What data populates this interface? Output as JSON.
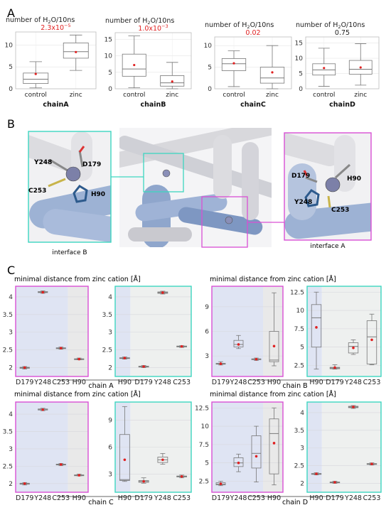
{
  "panels": {
    "A": "A",
    "B": "B",
    "C": "C"
  },
  "section_a": {
    "ylabel_prefix": "number of H",
    "ylabel_sub": "2",
    "ylabel_suffix": "O/10ns",
    "categories": [
      "control",
      "zinc"
    ]
  },
  "section_b": {
    "interface_b": "interface B",
    "interface_a": "interface A",
    "labels_left": [
      "Y248",
      "D179",
      "C253",
      "H90"
    ],
    "labels_right": [
      "D179",
      "H90",
      "Y248",
      "C253"
    ]
  },
  "section_c": {
    "ylabel": "minimal distance from zinc cation [Å]",
    "chain_labels": [
      "chain A",
      "chain B",
      "chain C",
      "chain D"
    ]
  },
  "colors": {
    "magenta": "#d94fd4",
    "teal": "#3dd6c0",
    "red": "#e02020",
    "median": "#7a7a7a",
    "blue_shade": "#dfe4f3",
    "grey_shade": "#e9e9e9"
  },
  "chart_data": [
    {
      "type": "box",
      "id": "A1",
      "xlabel": "chainA",
      "pvalue": "2.3x10",
      "pvalue_exp": "−5",
      "categories": [
        "control",
        "zinc"
      ],
      "ylim": [
        0,
        13
      ],
      "yticks": [
        0,
        5,
        10
      ],
      "boxes": [
        {
          "whislo": 0.2,
          "q1": 1.2,
          "med": 2.2,
          "q3": 3.6,
          "whishi": 6.2,
          "mean": 3.4
        },
        {
          "whislo": 4.2,
          "q1": 7.0,
          "med": 8.5,
          "q3": 10.5,
          "whishi": 12.3,
          "mean": 8.4
        }
      ]
    },
    {
      "type": "box",
      "id": "A2",
      "xlabel": "chainB",
      "pvalue": "1.0x10",
      "pvalue_exp": "−3",
      "categories": [
        "control",
        "zinc"
      ],
      "ylim": [
        0,
        17
      ],
      "yticks": [
        0,
        5,
        10,
        15
      ],
      "boxes": [
        {
          "whislo": 0.3,
          "q1": 3.8,
          "med": 6.0,
          "q3": 10.5,
          "whishi": 16.0,
          "mean": 7.2
        },
        {
          "whislo": 0.0,
          "q1": 0.8,
          "med": 1.8,
          "q3": 4.0,
          "whishi": 8.0,
          "mean": 2.2
        }
      ]
    },
    {
      "type": "box",
      "id": "A3",
      "xlabel": "chainC",
      "pvalue": "0.02",
      "pvalue_exp": "",
      "categories": [
        "control",
        "zinc"
      ],
      "ylim": [
        0,
        12
      ],
      "yticks": [
        0,
        5,
        10
      ],
      "boxes": [
        {
          "whislo": 0.5,
          "q1": 4.2,
          "med": 5.8,
          "q3": 7.0,
          "whishi": 8.8,
          "mean": 5.9
        },
        {
          "whislo": 0.0,
          "q1": 1.3,
          "med": 2.5,
          "q3": 5.0,
          "whishi": 10.0,
          "mean": 3.8
        }
      ]
    },
    {
      "type": "box",
      "id": "A4",
      "xlabel": "chainD",
      "pvalue": "0.75",
      "pvalue_exp": "",
      "categories": [
        "control",
        "zinc"
      ],
      "ylim": [
        0,
        17
      ],
      "yticks": [
        0,
        5,
        10,
        15
      ],
      "boxes": [
        {
          "whislo": 0.8,
          "q1": 4.5,
          "med": 6.2,
          "q3": 8.2,
          "whishi": 13.3,
          "mean": 6.8
        },
        {
          "whislo": 1.2,
          "q1": 4.8,
          "med": 6.4,
          "q3": 9.3,
          "whishi": 14.8,
          "mean": 7.0
        }
      ]
    },
    {
      "type": "box",
      "id": "CA_m",
      "frame": "magenta",
      "categories": [
        "D179",
        "Y248",
        "C253",
        "H90"
      ],
      "ylim": [
        1.75,
        4.3
      ],
      "yticks": [
        2,
        2.5,
        3,
        3.5,
        4
      ],
      "boxes": [
        {
          "whislo": 1.96,
          "q1": 1.98,
          "med": 2.0,
          "q3": 2.01,
          "whishi": 2.03,
          "mean": 2.0
        },
        {
          "whislo": 4.1,
          "q1": 4.12,
          "med": 4.13,
          "q3": 4.15,
          "whishi": 4.17,
          "mean": 4.13
        },
        {
          "whislo": 2.52,
          "q1": 2.54,
          "med": 2.55,
          "q3": 2.56,
          "whishi": 2.58,
          "mean": 2.55
        },
        {
          "whislo": 2.22,
          "q1": 2.23,
          "med": 2.24,
          "q3": 2.25,
          "whishi": 2.27,
          "mean": 2.24
        }
      ]
    },
    {
      "type": "box",
      "id": "CA_t",
      "frame": "teal",
      "categories": [
        "H90",
        "D179",
        "Y248",
        "C253"
      ],
      "ylim": [
        1.75,
        4.3
      ],
      "yticks": [
        2,
        2.5,
        3,
        3.5,
        4
      ],
      "boxes": [
        {
          "whislo": 2.24,
          "q1": 2.26,
          "med": 2.27,
          "q3": 2.28,
          "whishi": 2.3,
          "mean": 2.27
        },
        {
          "whislo": 2.0,
          "q1": 2.02,
          "med": 2.03,
          "q3": 2.04,
          "whishi": 2.06,
          "mean": 2.03
        },
        {
          "whislo": 4.08,
          "q1": 4.1,
          "med": 4.12,
          "q3": 4.14,
          "whishi": 4.16,
          "mean": 4.12
        },
        {
          "whislo": 2.57,
          "q1": 2.59,
          "med": 2.6,
          "q3": 2.61,
          "whishi": 2.62,
          "mean": 2.6
        }
      ]
    },
    {
      "type": "box",
      "id": "CB_m",
      "frame": "magenta",
      "categories": [
        "D179",
        "Y248",
        "C253",
        "H90"
      ],
      "ylim": [
        0.5,
        11.5
      ],
      "yticks": [
        3,
        6,
        9
      ],
      "boxes": [
        {
          "whislo": 1.9,
          "q1": 2.0,
          "med": 2.05,
          "q3": 2.1,
          "whishi": 2.3,
          "mean": 2.05
        },
        {
          "whislo": 3.9,
          "q1": 4.1,
          "med": 4.4,
          "q3": 4.9,
          "whishi": 5.5,
          "mean": 4.4
        },
        {
          "whislo": 2.45,
          "q1": 2.55,
          "med": 2.6,
          "q3": 2.65,
          "whishi": 2.75,
          "mean": 2.6
        },
        {
          "whislo": 1.8,
          "q1": 2.3,
          "med": 2.5,
          "q3": 6.0,
          "whishi": 10.7,
          "mean": 4.2
        }
      ]
    },
    {
      "type": "box",
      "id": "CB_t",
      "frame": "teal",
      "categories": [
        "H90",
        "D179",
        "Y248",
        "C253"
      ],
      "ylim": [
        1.0,
        13.3
      ],
      "yticks": [
        2.5,
        5,
        7.5,
        10,
        12.5
      ],
      "boxes": [
        {
          "whislo": 2.0,
          "q1": 5.0,
          "med": 9.0,
          "q3": 10.8,
          "whishi": 12.5,
          "mean": 7.7
        },
        {
          "whislo": 2.0,
          "q1": 2.05,
          "med": 2.15,
          "q3": 2.25,
          "whishi": 2.6,
          "mean": 2.2
        },
        {
          "whislo": 4.0,
          "q1": 4.2,
          "med": 5.1,
          "q3": 5.6,
          "whishi": 6.0,
          "mean": 4.9
        },
        {
          "whislo": 2.6,
          "q1": 2.7,
          "med": 6.4,
          "q3": 8.6,
          "whishi": 9.5,
          "mean": 6.0
        }
      ]
    },
    {
      "type": "box",
      "id": "CC_m",
      "frame": "magenta",
      "categories": [
        "D179",
        "Y248",
        "C253",
        "H90"
      ],
      "ylim": [
        1.75,
        4.35
      ],
      "yticks": [
        2,
        2.5,
        3,
        3.5,
        4
      ],
      "boxes": [
        {
          "whislo": 1.96,
          "q1": 1.98,
          "med": 2.0,
          "q3": 2.01,
          "whishi": 2.03,
          "mean": 2.0
        },
        {
          "whislo": 4.1,
          "q1": 4.12,
          "med": 4.13,
          "q3": 4.15,
          "whishi": 4.17,
          "mean": 4.13
        },
        {
          "whislo": 2.52,
          "q1": 2.54,
          "med": 2.55,
          "q3": 2.56,
          "whishi": 2.58,
          "mean": 2.55
        },
        {
          "whislo": 2.22,
          "q1": 2.23,
          "med": 2.24,
          "q3": 2.25,
          "whishi": 2.27,
          "mean": 2.24
        }
      ]
    },
    {
      "type": "box",
      "id": "CC_t",
      "frame": "teal",
      "categories": [
        "H90",
        "D179",
        "Y248",
        "C253"
      ],
      "ylim": [
        1.0,
        11.0
      ],
      "yticks": [
        3,
        6,
        9
      ],
      "boxes": [
        {
          "whislo": 2.2,
          "q1": 2.3,
          "med": 2.4,
          "q3": 7.4,
          "whishi": 10.5,
          "mean": 4.6
        },
        {
          "whislo": 2.0,
          "q1": 2.1,
          "med": 2.2,
          "q3": 2.3,
          "whishi": 2.6,
          "mean": 2.2
        },
        {
          "whislo": 4.1,
          "q1": 4.3,
          "med": 4.6,
          "q3": 4.9,
          "whishi": 5.3,
          "mean": 4.6
        },
        {
          "whislo": 2.6,
          "q1": 2.7,
          "med": 2.75,
          "q3": 2.8,
          "whishi": 2.9,
          "mean": 2.75
        }
      ]
    },
    {
      "type": "box",
      "id": "CD_m",
      "frame": "magenta",
      "categories": [
        "D179",
        "Y248",
        "C253",
        "H90"
      ],
      "ylim": [
        1.0,
        13.3
      ],
      "yticks": [
        2.5,
        5,
        7.5,
        10,
        12.5
      ],
      "boxes": [
        {
          "whislo": 1.9,
          "q1": 2.0,
          "med": 2.1,
          "q3": 2.3,
          "whishi": 2.5,
          "mean": 2.15
        },
        {
          "whislo": 3.8,
          "q1": 4.5,
          "med": 5.0,
          "q3": 5.7,
          "whishi": 6.2,
          "mean": 5.0
        },
        {
          "whislo": 2.4,
          "q1": 4.3,
          "med": 6.3,
          "q3": 8.7,
          "whishi": 10.0,
          "mean": 5.9
        },
        {
          "whislo": 2.0,
          "q1": 3.5,
          "med": 9.0,
          "q3": 11.0,
          "whishi": 12.5,
          "mean": 7.7
        }
      ]
    },
    {
      "type": "box",
      "id": "CD_t",
      "frame": "teal",
      "categories": [
        "H90",
        "D179",
        "Y248",
        "C253"
      ],
      "ylim": [
        1.75,
        4.3
      ],
      "yticks": [
        2,
        2.5,
        3,
        3.5,
        4
      ],
      "boxes": [
        {
          "whislo": 2.24,
          "q1": 2.26,
          "med": 2.27,
          "q3": 2.28,
          "whishi": 2.3,
          "mean": 2.27
        },
        {
          "whislo": 2.0,
          "q1": 2.02,
          "med": 2.03,
          "q3": 2.04,
          "whishi": 2.06,
          "mean": 2.03
        },
        {
          "whislo": 4.12,
          "q1": 4.14,
          "med": 4.16,
          "q3": 4.18,
          "whishi": 4.2,
          "mean": 4.16
        },
        {
          "whislo": 2.52,
          "q1": 2.54,
          "med": 2.55,
          "q3": 2.56,
          "whishi": 2.58,
          "mean": 2.55
        }
      ]
    }
  ]
}
